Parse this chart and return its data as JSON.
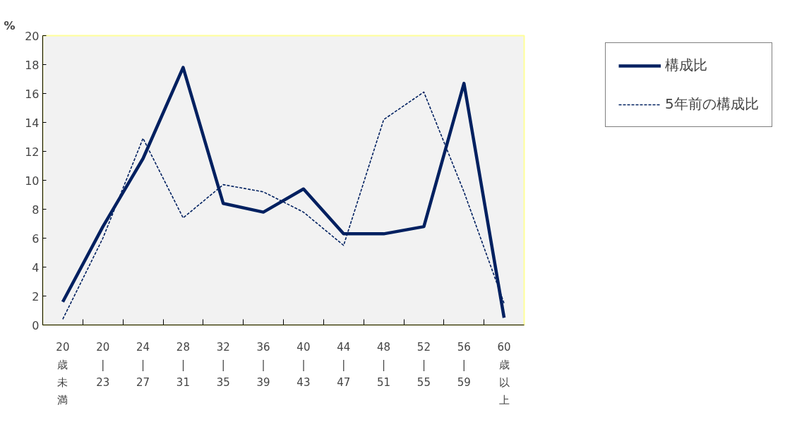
{
  "chart_data": {
    "type": "line",
    "ylabel": "%",
    "categories": [
      "20歳未満",
      "20|23",
      "24|27",
      "28|31",
      "32|35",
      "36|39",
      "40|43",
      "44|47",
      "48|51",
      "52|55",
      "56|59",
      "60歳以上"
    ],
    "series": [
      {
        "name": "構成比",
        "color": "#002060",
        "line_style": "solid",
        "values": [
          1.6,
          6.8,
          11.5,
          17.8,
          8.4,
          7.8,
          9.4,
          6.3,
          6.3,
          6.8,
          16.7,
          0.5
        ]
      },
      {
        "name": "5年前の構成比",
        "color": "#002060",
        "line_style": "dashed",
        "values": [
          0.4,
          6.0,
          12.9,
          7.4,
          9.7,
          9.2,
          7.8,
          5.5,
          14.2,
          16.1,
          9.2,
          1.5
        ]
      }
    ],
    "ylim": [
      0,
      20
    ],
    "yticks": [
      0,
      2,
      4,
      6,
      8,
      10,
      12,
      14,
      16,
      18,
      20
    ],
    "grid": false,
    "legend": "top right",
    "marker": "none"
  }
}
